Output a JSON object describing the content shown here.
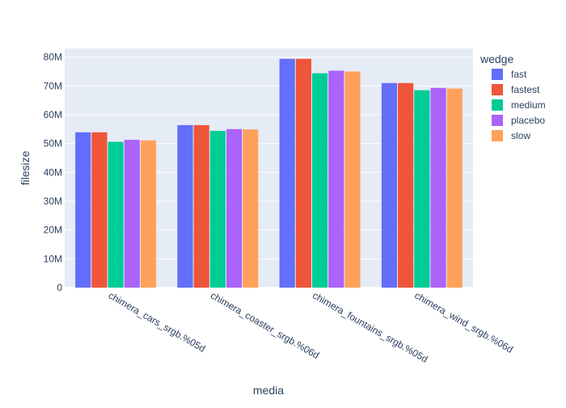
{
  "chart_data": {
    "type": "bar",
    "xlabel": "media",
    "ylabel": "filesize",
    "ylim": [
      0,
      83000000
    ],
    "y_ticks": [
      0,
      10000000,
      20000000,
      30000000,
      40000000,
      50000000,
      60000000,
      70000000,
      80000000
    ],
    "y_tick_labels": [
      "0",
      "10M",
      "20M",
      "30M",
      "40M",
      "50M",
      "60M",
      "70M",
      "80M"
    ],
    "categories": [
      "chimera_cars_srgb.%05d",
      "chimera_coaster_srgb.%06d",
      "chimera_fountains_srgb.%05d",
      "chimera_wind_srgb.%06d"
    ],
    "legend_title": "wedge",
    "legend_position": "right",
    "grid": true,
    "plot_background": "#e5ecf6",
    "series": [
      {
        "name": "fast",
        "color": "#636efa",
        "values": [
          53900000,
          56400000,
          79400000,
          71000000
        ]
      },
      {
        "name": "fastest",
        "color": "#ef553b",
        "values": [
          53900000,
          56400000,
          79400000,
          71000000
        ]
      },
      {
        "name": "medium",
        "color": "#00cc96",
        "values": [
          50600000,
          54400000,
          74400000,
          68500000
        ]
      },
      {
        "name": "placebo",
        "color": "#ab63fa",
        "values": [
          51300000,
          55000000,
          75300000,
          69300000
        ]
      },
      {
        "name": "slow",
        "color": "#ffa15a",
        "values": [
          51100000,
          54900000,
          75000000,
          69100000
        ]
      }
    ]
  }
}
